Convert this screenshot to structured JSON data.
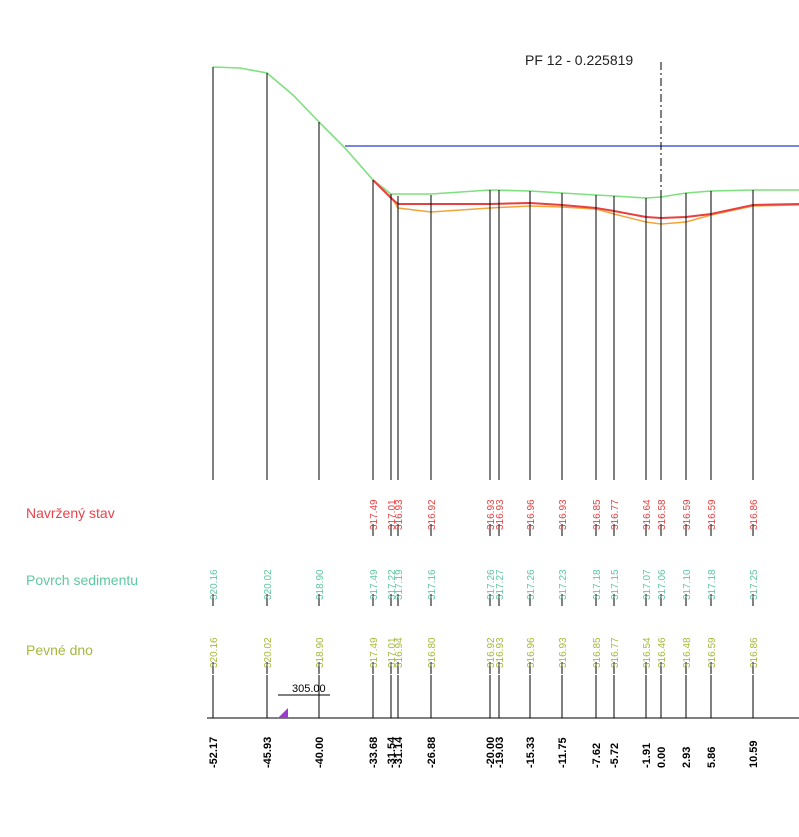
{
  "profile_title": "PF 12 - 0.225819",
  "datum_label": "305.00",
  "rows": {
    "designed": {
      "label": "Navržený stav",
      "color": "#e8434a"
    },
    "sediment": {
      "label": "Povrch sedimentu",
      "color": "#5ec8a0"
    },
    "bed": {
      "label": "Pevné dno",
      "color": "#a7b93a"
    }
  },
  "colors": {
    "water_level": "#4a5ed6",
    "sediment_line": "#7ee07e",
    "designed_line": "#e84040",
    "bed_line": "#f2a43a",
    "axis": "#000000",
    "marker": "#9b3cc8"
  },
  "stations": [
    {
      "x": "-52.17",
      "bed": "320.16",
      "sed": "320.16",
      "des": ""
    },
    {
      "x": "-45.93",
      "bed": "320.02",
      "sed": "320.02",
      "des": ""
    },
    {
      "x": "-40.00",
      "bed": "318.90",
      "sed": "318.90",
      "des": ""
    },
    {
      "x": "-33.68",
      "bed": "317.49",
      "sed": "317.49",
      "des": "317.49"
    },
    {
      "x": "-31.54",
      "bed": "317.01",
      "sed": "317.22",
      "des": "317.01"
    },
    {
      "x": "-31.14",
      "bed": "316.94",
      "sed": "317.19",
      "des": "316.93"
    },
    {
      "x": "-26.88",
      "bed": "316.80",
      "sed": "317.16",
      "des": "316.92"
    },
    {
      "x": "-20.00",
      "bed": "316.92",
      "sed": "317.26",
      "des": "316.93"
    },
    {
      "x": "-19.03",
      "bed": "316.93",
      "sed": "317.27",
      "des": "316.93"
    },
    {
      "x": "-15.33",
      "bed": "316.96",
      "sed": "317.26",
      "des": "316.96"
    },
    {
      "x": "-11.75",
      "bed": "316.93",
      "sed": "317.23",
      "des": "316.93"
    },
    {
      "x": "-7.62",
      "bed": "316.85",
      "sed": "317.18",
      "des": "316.85"
    },
    {
      "x": "-5.72",
      "bed": "316.77",
      "sed": "317.15",
      "des": "316.77"
    },
    {
      "x": "-1.91",
      "bed": "316.54",
      "sed": "317.07",
      "des": "316.64"
    },
    {
      "x": "0.00",
      "bed": "316.46",
      "sed": "317.06",
      "des": "316.58"
    },
    {
      "x": "2.93",
      "bed": "316.48",
      "sed": "317.10",
      "des": "316.59"
    },
    {
      "x": "5.86",
      "bed": "316.59",
      "sed": "317.18",
      "des": "316.59"
    },
    {
      "x": "10.59",
      "bed": "316.86",
      "sed": "317.25",
      "des": "316.86"
    }
  ]
}
